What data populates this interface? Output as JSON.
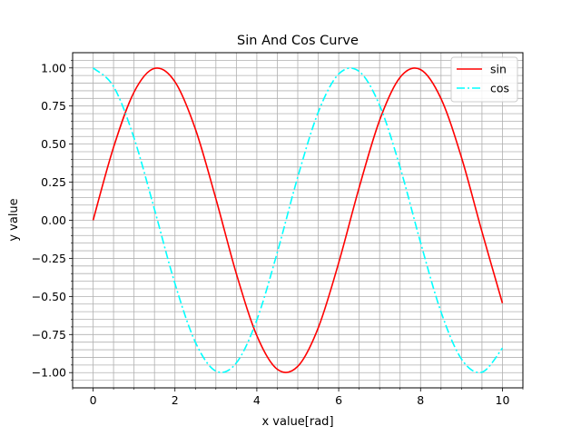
{
  "chart_data": {
    "type": "line",
    "title": "Sin And Cos Curve",
    "xlabel": "x value[rad]",
    "ylabel": "y value",
    "xlim": [
      -0.5,
      10.5
    ],
    "ylim": [
      -1.1,
      1.1
    ],
    "x_ticks": [
      0,
      2,
      4,
      6,
      8,
      10
    ],
    "x_tick_labels": [
      "0",
      "2",
      "4",
      "6",
      "8",
      "10"
    ],
    "x_minor_ticks": [
      -0.5,
      0.5,
      1,
      1.5,
      2.5,
      3,
      3.5,
      4.5,
      5,
      5.5,
      6.5,
      7,
      7.5,
      8.5,
      9,
      9.5,
      10.5
    ],
    "y_ticks": [
      -1.0,
      -0.75,
      -0.5,
      -0.25,
      0.0,
      0.25,
      0.5,
      0.75,
      1.0
    ],
    "y_tick_labels": [
      "−1.00",
      "−0.75",
      "−0.50",
      "−0.25",
      "0.00",
      "0.25",
      "0.50",
      "0.75",
      "1.00"
    ],
    "y_minor_ticks": [
      -1.05,
      -0.95,
      -0.9,
      -0.85,
      -0.8,
      -0.7,
      -0.65,
      -0.6,
      -0.55,
      -0.45,
      -0.4,
      -0.35,
      -0.3,
      -0.2,
      -0.15,
      -0.1,
      -0.05,
      0.05,
      0.1,
      0.15,
      0.2,
      0.3,
      0.35,
      0.4,
      0.45,
      0.55,
      0.6,
      0.65,
      0.7,
      0.8,
      0.85,
      0.9,
      0.95,
      1.05
    ],
    "grid": "major and minor",
    "legend": {
      "placement": "upper-right"
    },
    "x": [
      0.0,
      0.5,
      1.0,
      1.5,
      2.0,
      2.5,
      3.0,
      3.5,
      4.0,
      4.5,
      5.0,
      5.5,
      6.0,
      6.5,
      7.0,
      7.5,
      8.0,
      8.5,
      9.0,
      9.5,
      10.0
    ],
    "series": [
      {
        "name": "sin",
        "color": "#ff0000",
        "linestyle": "solid",
        "values": [
          0.0,
          0.479,
          0.841,
          0.997,
          0.909,
          0.598,
          0.141,
          -0.351,
          -0.757,
          -0.978,
          -0.959,
          -0.706,
          -0.279,
          0.215,
          0.657,
          0.938,
          0.989,
          0.798,
          0.412,
          -0.075,
          -0.544
        ]
      },
      {
        "name": "cos",
        "color": "#00ffff",
        "linestyle": "dashdot",
        "values": [
          1.0,
          0.878,
          0.54,
          0.071,
          -0.416,
          -0.801,
          -0.99,
          -0.936,
          -0.654,
          -0.211,
          0.284,
          0.709,
          0.96,
          0.977,
          0.754,
          0.347,
          -0.146,
          -0.602,
          -0.911,
          -0.997,
          -0.839
        ]
      }
    ]
  }
}
